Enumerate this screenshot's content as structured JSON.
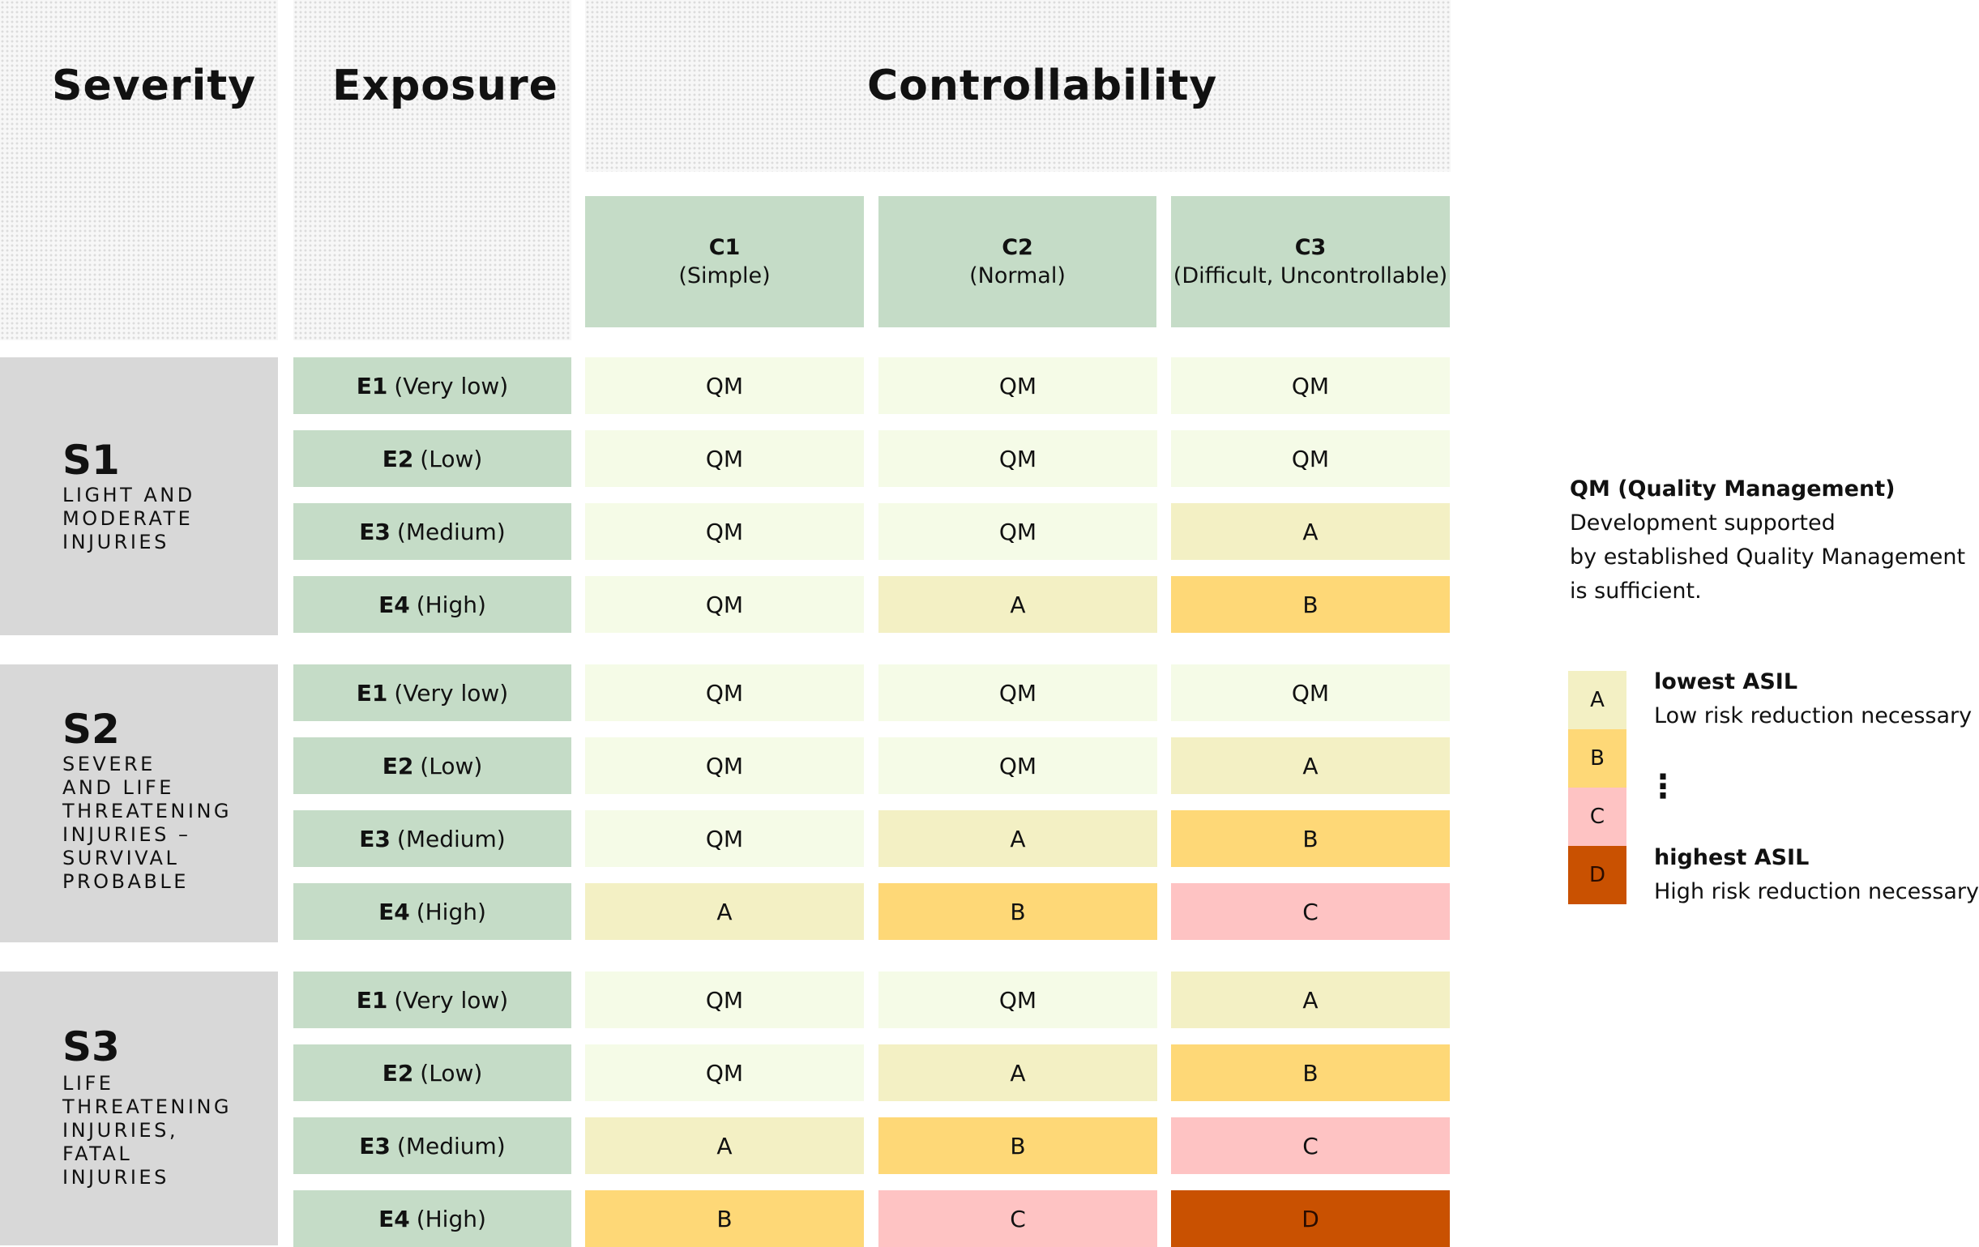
{
  "headers": {
    "severity": "Severity",
    "exposure": "Exposure",
    "controllability": "Controllability"
  },
  "controllability_classes": [
    {
      "code": "C1",
      "label": "(Simple)"
    },
    {
      "code": "C2",
      "label": "(Normal)"
    },
    {
      "code": "C3",
      "label": "(Difficult, Uncontrollable)"
    }
  ],
  "severity_classes": [
    {
      "code": "S1",
      "description": "LIGHT AND\nMODERATE\nINJURIES"
    },
    {
      "code": "S2",
      "description": "SEVERE\nAND LIFE\nTHREATENING\nINJURIES –\nSURVIVAL\nPROBABLE"
    },
    {
      "code": "S3",
      "description": "LIFE\nTHREATENING\nINJURIES,\nFATAL\nINJURIES"
    }
  ],
  "exposure_classes": [
    {
      "code": "E1",
      "label": "(Very low)"
    },
    {
      "code": "E2",
      "label": "(Low)"
    },
    {
      "code": "E3",
      "label": "(Medium)"
    },
    {
      "code": "E4",
      "label": "(High)"
    }
  ],
  "matrix": [
    [
      [
        "QM",
        "QM",
        "QM"
      ],
      [
        "QM",
        "QM",
        "QM"
      ],
      [
        "QM",
        "QM",
        "A"
      ],
      [
        "QM",
        "A",
        "B"
      ]
    ],
    [
      [
        "QM",
        "QM",
        "QM"
      ],
      [
        "QM",
        "QM",
        "A"
      ],
      [
        "QM",
        "A",
        "B"
      ],
      [
        "A",
        "B",
        "C"
      ]
    ],
    [
      [
        "QM",
        "QM",
        "A"
      ],
      [
        "QM",
        "A",
        "B"
      ],
      [
        "A",
        "B",
        "C"
      ],
      [
        "B",
        "C",
        "D"
      ]
    ]
  ],
  "legend": {
    "qm_title": "QM (Quality Management)",
    "qm_desc_lines": [
      "Development supported",
      "by established Quality Management",
      "is sufficient."
    ],
    "levels": [
      "A",
      "B",
      "C",
      "D"
    ],
    "lowest_title": "lowest ASIL",
    "lowest_desc": "Low risk reduction necessary",
    "ellipsis": "⋮",
    "highest_title": "highest ASIL",
    "highest_desc": "High risk reduction necessary"
  },
  "colors": {
    "QM": "#f5fbe7",
    "A": "#f3f0c4",
    "B": "#fed877",
    "C": "#fec3c3",
    "D": "#c95101",
    "header_green": "#c5dcc7",
    "severity_grey": "#d8d8d8"
  }
}
